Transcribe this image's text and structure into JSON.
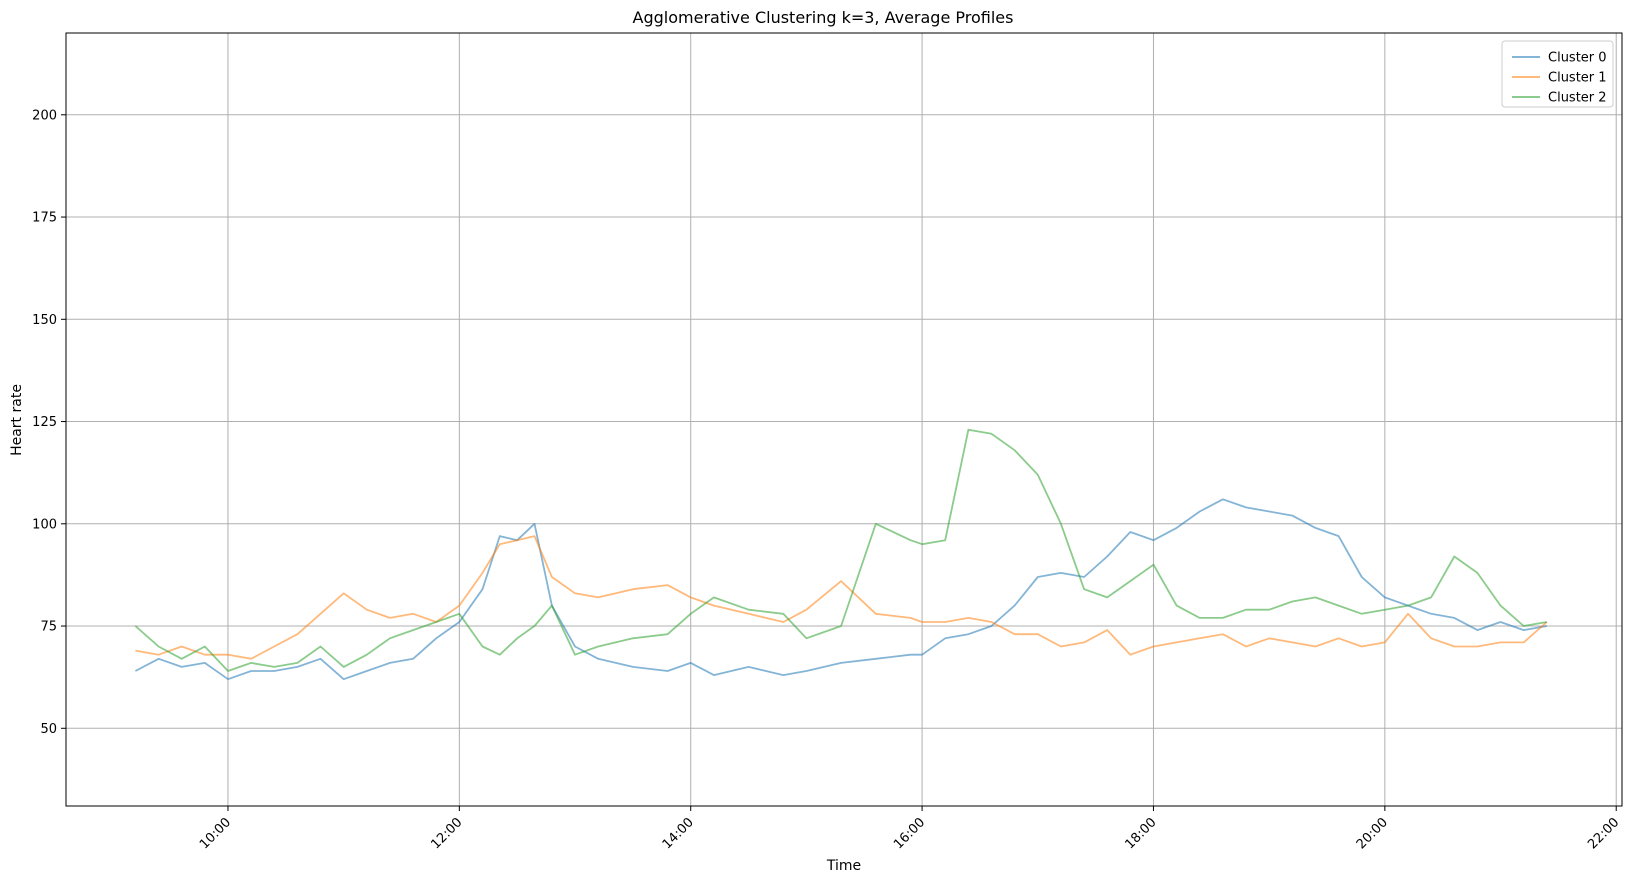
{
  "chart_data": {
    "type": "line",
    "title": "Agglomerative Clustering k=3, Average Profiles",
    "xlabel": "Time",
    "ylabel": "Heart rate",
    "xlim": [
      8.6,
      22.05
    ],
    "ylim": [
      31,
      220
    ],
    "grid": true,
    "legend_position": "top-right",
    "x_ticks": [
      {
        "value": 10,
        "label": "10:00"
      },
      {
        "value": 12,
        "label": "12:00"
      },
      {
        "value": 14,
        "label": "14:00"
      },
      {
        "value": 16,
        "label": "16:00"
      },
      {
        "value": 18,
        "label": "18:00"
      },
      {
        "value": 20,
        "label": "20:00"
      },
      {
        "value": 22,
        "label": "22:00"
      }
    ],
    "y_ticks": [
      {
        "value": 50,
        "label": "50"
      },
      {
        "value": 75,
        "label": "75"
      },
      {
        "value": 100,
        "label": "100"
      },
      {
        "value": 125,
        "label": "125"
      },
      {
        "value": 150,
        "label": "150"
      },
      {
        "value": 175,
        "label": "175"
      },
      {
        "value": 200,
        "label": "200"
      }
    ],
    "x_unit": "hours",
    "series": [
      {
        "name": "Cluster 0",
        "color": "#1f77b4",
        "x": [
          9.2,
          9.4,
          9.6,
          9.8,
          10.0,
          10.2,
          10.4,
          10.6,
          10.8,
          11.0,
          11.2,
          11.4,
          11.6,
          11.8,
          12.0,
          12.2,
          12.35,
          12.5,
          12.65,
          12.8,
          13.0,
          13.2,
          13.5,
          13.8,
          14.0,
          14.2,
          14.5,
          14.8,
          15.0,
          15.3,
          15.6,
          15.9,
          16.0,
          16.2,
          16.4,
          16.6,
          16.8,
          17.0,
          17.2,
          17.4,
          17.6,
          17.8,
          18.0,
          18.2,
          18.4,
          18.6,
          18.8,
          19.0,
          19.2,
          19.4,
          19.6,
          19.8,
          20.0,
          20.2,
          20.4,
          20.6,
          20.8,
          21.0,
          21.2,
          21.4
        ],
        "values": [
          64,
          67,
          65,
          66,
          62,
          64,
          64,
          65,
          67,
          62,
          64,
          66,
          67,
          72,
          76,
          84,
          97,
          96,
          100,
          80,
          70,
          67,
          65,
          64,
          66,
          63,
          65,
          63,
          64,
          66,
          67,
          68,
          68,
          72,
          73,
          75,
          80,
          87,
          88,
          87,
          92,
          98,
          96,
          99,
          103,
          106,
          104,
          103,
          102,
          99,
          97,
          87,
          82,
          80,
          78,
          77,
          74,
          76,
          74,
          75
        ]
      },
      {
        "name": "Cluster 1",
        "color": "#ff7f0e",
        "x": [
          9.2,
          9.4,
          9.6,
          9.8,
          10.0,
          10.2,
          10.4,
          10.6,
          10.8,
          11.0,
          11.2,
          11.4,
          11.6,
          11.8,
          12.0,
          12.2,
          12.35,
          12.5,
          12.65,
          12.8,
          13.0,
          13.2,
          13.5,
          13.8,
          14.0,
          14.2,
          14.5,
          14.8,
          15.0,
          15.3,
          15.6,
          15.9,
          16.0,
          16.2,
          16.4,
          16.6,
          16.8,
          17.0,
          17.2,
          17.4,
          17.6,
          17.8,
          18.0,
          18.2,
          18.4,
          18.6,
          18.8,
          19.0,
          19.2,
          19.4,
          19.6,
          19.8,
          20.0,
          20.2,
          20.4,
          20.6,
          20.8,
          21.0,
          21.2,
          21.4
        ],
        "values": [
          69,
          68,
          70,
          68,
          68,
          67,
          70,
          73,
          78,
          83,
          79,
          77,
          78,
          76,
          80,
          88,
          95,
          96,
          97,
          87,
          83,
          82,
          84,
          85,
          82,
          80,
          78,
          76,
          79,
          86,
          78,
          77,
          76,
          76,
          77,
          76,
          73,
          73,
          70,
          71,
          74,
          68,
          70,
          71,
          72,
          73,
          70,
          72,
          71,
          70,
          72,
          70,
          71,
          78,
          72,
          70,
          70,
          71,
          71,
          76
        ]
      },
      {
        "name": "Cluster 2",
        "color": "#2ca02c",
        "x": [
          9.2,
          9.4,
          9.6,
          9.8,
          10.0,
          10.2,
          10.4,
          10.6,
          10.8,
          11.0,
          11.2,
          11.4,
          11.6,
          11.8,
          12.0,
          12.2,
          12.35,
          12.5,
          12.65,
          12.8,
          13.0,
          13.2,
          13.5,
          13.8,
          14.0,
          14.2,
          14.5,
          14.8,
          15.0,
          15.3,
          15.6,
          15.9,
          16.0,
          16.2,
          16.4,
          16.6,
          16.8,
          17.0,
          17.2,
          17.4,
          17.6,
          17.8,
          18.0,
          18.2,
          18.4,
          18.6,
          18.8,
          19.0,
          19.2,
          19.4,
          19.6,
          19.8,
          20.0,
          20.2,
          20.4,
          20.6,
          20.8,
          21.0,
          21.2,
          21.4
        ],
        "values": [
          75,
          70,
          67,
          70,
          64,
          66,
          65,
          66,
          70,
          65,
          68,
          72,
          74,
          76,
          78,
          70,
          68,
          72,
          75,
          80,
          68,
          70,
          72,
          73,
          78,
          82,
          79,
          78,
          72,
          75,
          100,
          96,
          95,
          96,
          123,
          122,
          118,
          112,
          100,
          84,
          82,
          86,
          90,
          80,
          77,
          77,
          79,
          79,
          81,
          82,
          80,
          78,
          79,
          80,
          82,
          92,
          88,
          80,
          75,
          76
        ]
      }
    ]
  }
}
